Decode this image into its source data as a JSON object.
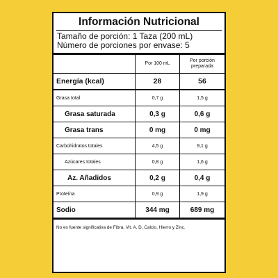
{
  "label": {
    "title": "Información Nutricional",
    "serving_size": "Tamaño de porción: 1 Taza (200 mL)",
    "servings_per_container": "Número de porciones por envase: 5",
    "columns": {
      "per_100": "Por 100 mL",
      "per_portion": "Por porción preparada"
    },
    "rows": {
      "energia": {
        "name": "Energía (kcal)",
        "per_100": "28",
        "per_portion": "56"
      },
      "grasa_total": {
        "name": "Grasa total",
        "per_100": "0,7 g",
        "per_portion": "1,5 g"
      },
      "grasa_saturada": {
        "name": "Grasa saturada",
        "per_100": "0,3 g",
        "per_portion": "0,6 g"
      },
      "grasa_trans": {
        "name": "Grasa trans",
        "per_100": "0 mg",
        "per_portion": "0 mg"
      },
      "carbohidratos": {
        "name": "Carbohidratos totales",
        "per_100": "4,5 g",
        "per_portion": "9,1 g"
      },
      "azucares": {
        "name": "Azúcares totales",
        "per_100": "0,8 g",
        "per_portion": "1,6 g"
      },
      "anadidos": {
        "name": "Az. Añadidos",
        "per_100": "0,2 g",
        "per_portion": "0,4 g"
      },
      "proteina": {
        "name": "Proteína",
        "per_100": "0,9 g",
        "per_portion": "1,9 g"
      },
      "sodio": {
        "name": "Sodio",
        "per_100": "344 mg",
        "per_portion": "689 mg"
      }
    },
    "footnote": "No es fuente significativa de Fibra, Vit. A, D, Calcio, Hierro y Zinc."
  },
  "colors": {
    "background": "#f5cd36",
    "panel": "#ffffff",
    "ink": "#111111"
  }
}
